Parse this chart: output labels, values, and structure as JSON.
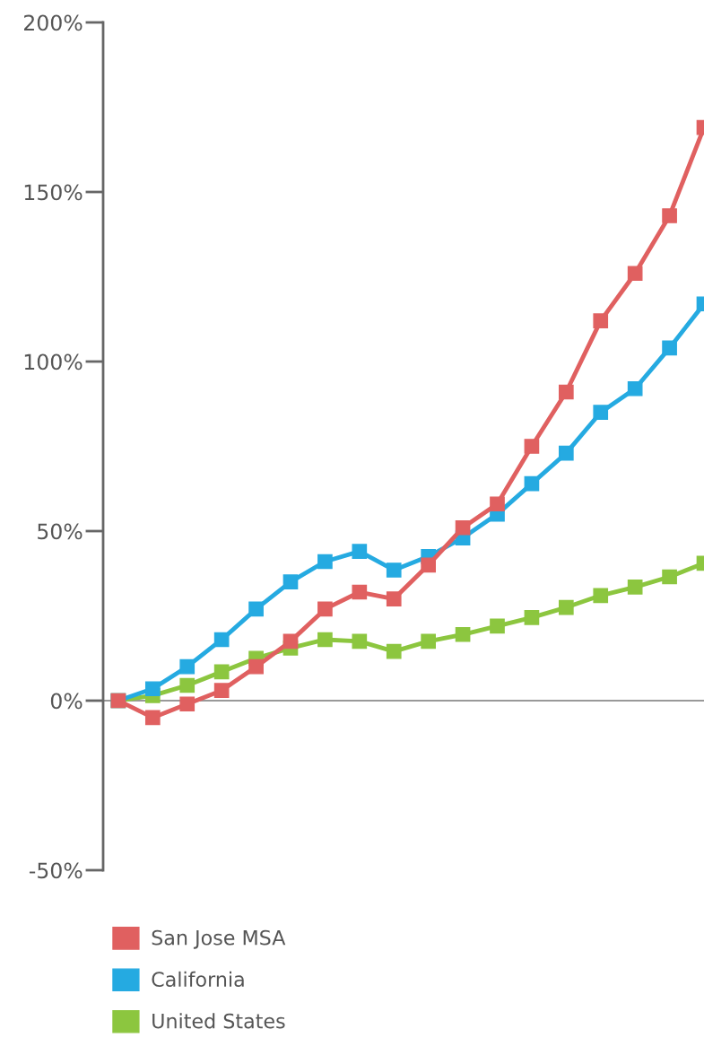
{
  "chart_data": {
    "type": "line",
    "categories": [
      null,
      null,
      null,
      null,
      null,
      null,
      null,
      null,
      null,
      null,
      null,
      null,
      null,
      null,
      null,
      null,
      null,
      null
    ],
    "series": [
      {
        "name": "San Jose MSA",
        "color": "#e06060",
        "values": [
          0,
          -5,
          -1,
          3,
          10,
          17.5,
          27,
          32,
          30,
          40,
          51,
          58,
          75,
          91,
          112,
          126,
          143,
          169
        ]
      },
      {
        "name": "California",
        "color": "#25aae1",
        "values": [
          0,
          3.5,
          10,
          18,
          27,
          35,
          41,
          44,
          38.5,
          42.5,
          48,
          55,
          64,
          73,
          85,
          92,
          104,
          117
        ]
      },
      {
        "name": "United States",
        "color": "#8cc63f",
        "values": [
          0,
          1.5,
          4.5,
          8.5,
          12.5,
          15.5,
          18,
          17.5,
          14.5,
          17.5,
          19.5,
          22,
          24.5,
          27.5,
          31,
          33.5,
          36.5,
          40.5
        ]
      }
    ],
    "ylim": [
      -50,
      200
    ],
    "yticks": [
      {
        "value": -50,
        "label": "-50%"
      },
      {
        "value": 0,
        "label": "0%"
      },
      {
        "value": 50,
        "label": "50%"
      },
      {
        "value": 100,
        "label": "100%"
      },
      {
        "value": 150,
        "label": "150%"
      },
      {
        "value": 200,
        "label": "200%"
      }
    ],
    "ref_lines": [
      {
        "axis": "y",
        "value": 0,
        "color": "#999999"
      }
    ],
    "marker": "square",
    "line_style": "solid",
    "grid": false,
    "legend": "bottom",
    "tick_labels": "y"
  }
}
